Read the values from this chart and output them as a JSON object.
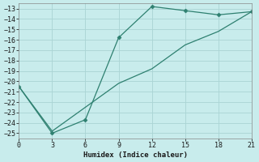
{
  "line1_x": [
    0,
    3,
    6,
    9,
    12,
    15,
    18,
    21
  ],
  "line1_y": [
    -20.5,
    -25.0,
    -23.7,
    -15.8,
    -12.8,
    -13.2,
    -13.6,
    -13.3
  ],
  "line2_x": [
    0,
    3,
    6,
    9,
    12,
    15,
    18,
    21
  ],
  "line2_y": [
    -20.5,
    -24.8,
    -22.5,
    -20.2,
    -18.8,
    -16.5,
    -15.2,
    -13.3
  ],
  "line_color": "#2e8070",
  "marker": "D",
  "marker_size": 2.5,
  "xlabel": "Humidex (Indice chaleur)",
  "xlim": [
    0,
    21
  ],
  "ylim": [
    -25.5,
    -12.5
  ],
  "xticks": [
    0,
    3,
    6,
    9,
    12,
    15,
    18,
    21
  ],
  "yticks": [
    -13,
    -14,
    -15,
    -16,
    -17,
    -18,
    -19,
    -20,
    -21,
    -22,
    -23,
    -24,
    -25
  ],
  "bg_color": "#c8ecec",
  "grid_color": "#aad4d4",
  "font_color": "#1a1a1a"
}
